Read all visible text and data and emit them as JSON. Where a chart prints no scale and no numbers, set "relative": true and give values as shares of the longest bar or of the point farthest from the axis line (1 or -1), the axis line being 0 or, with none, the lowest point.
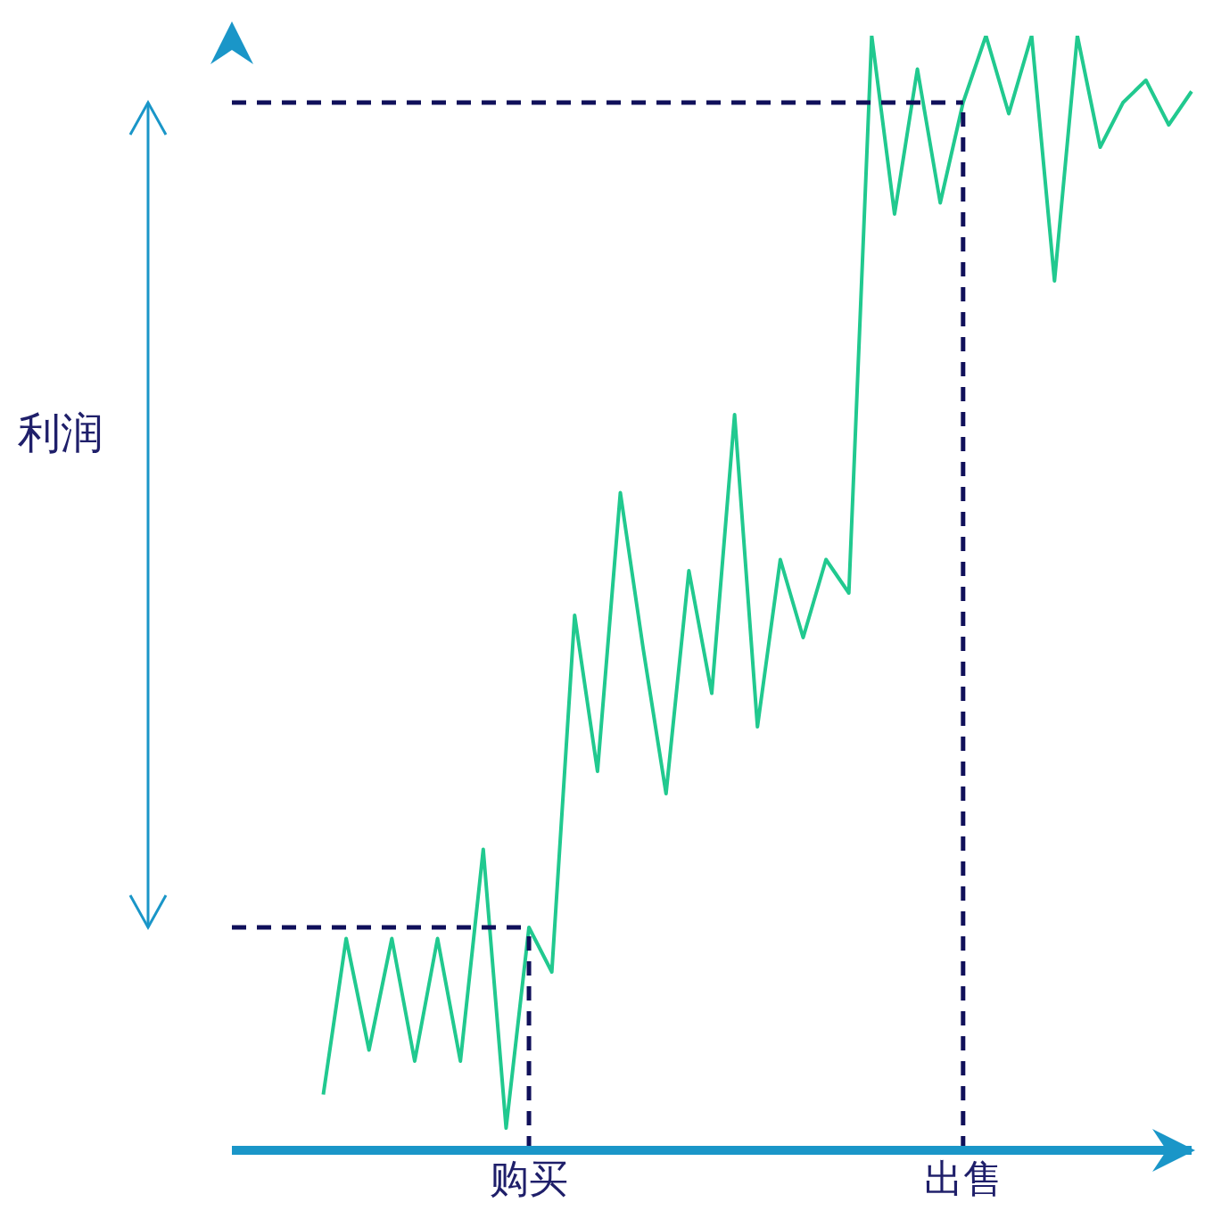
{
  "chart_data": {
    "type": "line",
    "relative": true,
    "annotations": [
      "利润"
    ],
    "categories": [
      null,
      null,
      null,
      null,
      null,
      null,
      null,
      null,
      null,
      null,
      null,
      null,
      null,
      "购买",
      null,
      null,
      null,
      null,
      null,
      null,
      null,
      null,
      null,
      null,
      null,
      null,
      null,
      null,
      null,
      null,
      null,
      null,
      "出售",
      null,
      null,
      null,
      null,
      null,
      null,
      null,
      null,
      null,
      null
    ],
    "series": [
      {
        "color": "#21c98f",
        "values": [
          null,
          null,
          null,
          null,
          0.05,
          0.19,
          0.09,
          0.19,
          0.08,
          0.19,
          0.08,
          0.27,
          0.02,
          0.2,
          0.16,
          0.48,
          0.34,
          0.59,
          0.45,
          0.32,
          0.52,
          0.41,
          0.66,
          0.38,
          0.53,
          0.46,
          0.53,
          0.5,
          1,
          0.84,
          0.97,
          0.85,
          0.94,
          1,
          0.93,
          1,
          0.78,
          1,
          0.9,
          0.94,
          0.96,
          0.92,
          0.95
        ]
      }
    ],
    "ref_lines": [
      {
        "axis": "x",
        "value": "购买",
        "color": "#10105a",
        "line_style": "dashed"
      },
      {
        "axis": "x",
        "value": "出售",
        "color": "#10105a",
        "line_style": "dashed"
      },
      {
        "axis": "y",
        "value": 0.2,
        "color": "#10105a",
        "line_style": "dashed"
      },
      {
        "axis": "y",
        "value": 0.94,
        "color": "#10105a",
        "line_style": "dashed"
      }
    ],
    "marker": "none",
    "grid": false,
    "legend": false
  }
}
